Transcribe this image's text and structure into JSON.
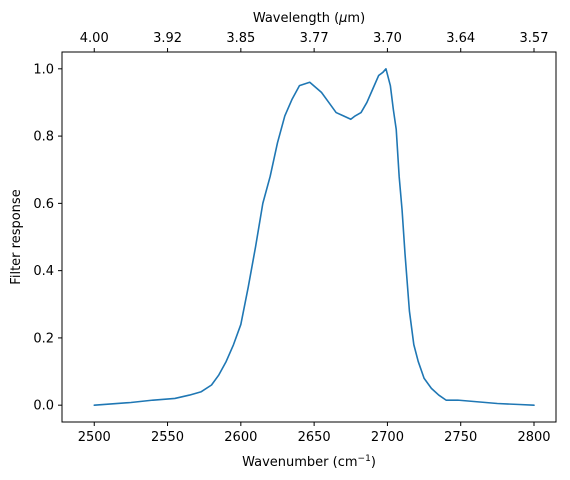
{
  "chart_data": {
    "type": "line",
    "title": "",
    "xlabel": "Wavenumber (cm",
    "xlabel_sup": "−1",
    "xlabel_close": ")",
    "ylabel": "Filter response",
    "top_axis_label": "Wavelength (",
    "top_axis_label_mu": "μ",
    "top_axis_label_close": "m)",
    "xlim": [
      2478,
      2815
    ],
    "ylim": [
      -0.05,
      1.05
    ],
    "grid": false,
    "colors": {
      "line": "#1f77b4"
    },
    "x_ticks": [
      2500,
      2550,
      2600,
      2650,
      2700,
      2750,
      2800
    ],
    "x_tick_labels": [
      "2500",
      "2550",
      "2600",
      "2650",
      "2700",
      "2750",
      "2800"
    ],
    "y_ticks": [
      0.0,
      0.2,
      0.4,
      0.6,
      0.8,
      1.0
    ],
    "y_tick_labels": [
      "0.0",
      "0.2",
      "0.4",
      "0.6",
      "0.8",
      "1.0"
    ],
    "top_ticks_wavenumber": [
      2500,
      2550,
      2600,
      2650,
      2700,
      2750,
      2800
    ],
    "top_tick_labels": [
      "4.00",
      "3.92",
      "3.85",
      "3.77",
      "3.70",
      "3.64",
      "3.57"
    ],
    "series": [
      {
        "x": [
          2500,
          2525,
          2540,
          2555,
          2565,
          2573,
          2580,
          2585,
          2590,
          2595,
          2600,
          2605,
          2610,
          2615,
          2620,
          2625,
          2630,
          2635,
          2640,
          2647,
          2655,
          2660,
          2665,
          2670,
          2675,
          2678,
          2682,
          2686,
          2690,
          2694,
          2697,
          2699,
          2702,
          2704,
          2706,
          2708,
          2710,
          2712,
          2715,
          2718,
          2721,
          2725,
          2730,
          2735,
          2740,
          2745,
          2748,
          2775,
          2790,
          2800
        ],
        "y": [
          0.0,
          0.008,
          0.015,
          0.02,
          0.03,
          0.04,
          0.06,
          0.09,
          0.13,
          0.18,
          0.24,
          0.35,
          0.47,
          0.6,
          0.68,
          0.78,
          0.86,
          0.91,
          0.95,
          0.96,
          0.93,
          0.9,
          0.87,
          0.86,
          0.85,
          0.86,
          0.87,
          0.9,
          0.94,
          0.98,
          0.99,
          1.0,
          0.95,
          0.88,
          0.82,
          0.68,
          0.58,
          0.45,
          0.28,
          0.18,
          0.13,
          0.08,
          0.05,
          0.03,
          0.015,
          0.015,
          0.015,
          0.005,
          0.002,
          0.0
        ]
      }
    ]
  }
}
